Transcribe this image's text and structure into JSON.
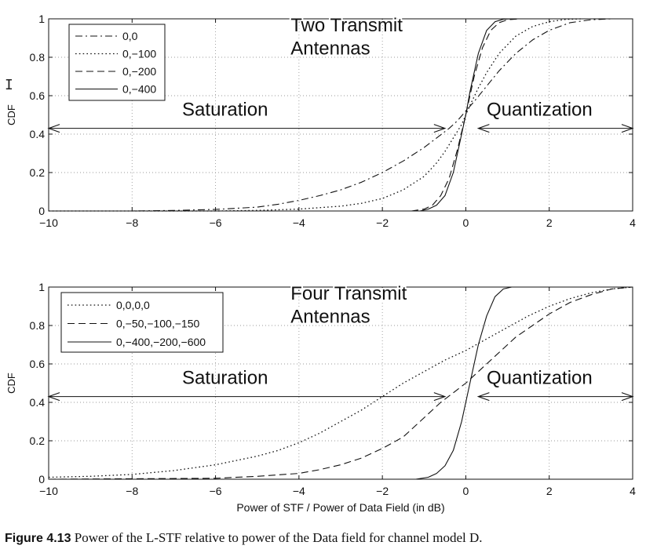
{
  "chart_data": [
    {
      "type": "line",
      "title": "",
      "xlabel": "",
      "ylabel": "CDF",
      "xlim": [
        -10,
        4
      ],
      "ylim": [
        0,
        1
      ],
      "xticks": [
        -10,
        -8,
        -6,
        -4,
        -2,
        0,
        2,
        4
      ],
      "xtick_labels": [
        "−10",
        "−8",
        "−6",
        "−4",
        "−2",
        "0",
        "2",
        "4"
      ],
      "yticks": [
        0,
        0.2,
        0.4,
        0.6,
        0.8,
        1
      ],
      "ytick_labels": [
        "0",
        "0.2",
        "0.4",
        "0.6",
        "0.8",
        "1"
      ],
      "grid": true,
      "legend_position": "top-left",
      "annotations": [
        {
          "text": "Two Transmit",
          "x": -4.2,
          "y": 0.935
        },
        {
          "text": "Antennas",
          "x": -4.2,
          "y": 0.815
        },
        {
          "text": "Saturation",
          "x": -6.8,
          "y": 0.495
        },
        {
          "text": "Quantization",
          "x": 0.5,
          "y": 0.495
        }
      ],
      "arrows": [
        {
          "from": [
            -10,
            0.43
          ],
          "to": [
            -0.5,
            0.43
          ]
        },
        {
          "from": [
            0.3,
            0.43
          ],
          "to": [
            4,
            0.43
          ]
        }
      ],
      "series": [
        {
          "name": "0,0",
          "style": "dashdot",
          "x": [
            -10,
            -8,
            -7,
            -6,
            -5,
            -4.5,
            -4,
            -3.5,
            -3,
            -2.5,
            -2,
            -1.5,
            -1,
            -0.7,
            -0.4,
            -0.2,
            0,
            0.2,
            0.5,
            0.8,
            1.2,
            1.6,
            2,
            2.5,
            3,
            3.5
          ],
          "y": [
            0,
            0,
            0.003,
            0.008,
            0.02,
            0.035,
            0.055,
            0.08,
            0.11,
            0.15,
            0.2,
            0.26,
            0.33,
            0.38,
            0.43,
            0.47,
            0.52,
            0.57,
            0.65,
            0.73,
            0.82,
            0.89,
            0.94,
            0.98,
            0.995,
            1
          ]
        },
        {
          "name": "0,−100",
          "style": "dotted",
          "x": [
            -10,
            -6,
            -5,
            -4,
            -3,
            -2.5,
            -2,
            -1.5,
            -1,
            -0.7,
            -0.5,
            -0.3,
            -0.1,
            0,
            0.1,
            0.3,
            0.5,
            0.8,
            1.2,
            1.6,
            2,
            2.4,
            2.8
          ],
          "y": [
            0,
            0,
            0.003,
            0.01,
            0.025,
            0.04,
            0.065,
            0.11,
            0.18,
            0.25,
            0.31,
            0.38,
            0.45,
            0.5,
            0.55,
            0.64,
            0.72,
            0.82,
            0.91,
            0.96,
            0.985,
            0.997,
            1
          ]
        },
        {
          "name": "0,−200",
          "style": "dashed",
          "x": [
            -10,
            -1.3,
            -1,
            -0.8,
            -0.6,
            -0.4,
            -0.2,
            0,
            0.2,
            0.4,
            0.6,
            0.8,
            1,
            1.3
          ],
          "y": [
            0,
            0,
            0.01,
            0.03,
            0.08,
            0.17,
            0.32,
            0.5,
            0.7,
            0.85,
            0.94,
            0.98,
            0.995,
            1
          ]
        },
        {
          "name": "0,−400",
          "style": "solid",
          "x": [
            -10,
            -1.1,
            -0.9,
            -0.7,
            -0.5,
            -0.3,
            -0.1,
            0,
            0.1,
            0.3,
            0.5,
            0.7,
            0.9,
            1.1
          ],
          "y": [
            0,
            0,
            0.01,
            0.03,
            0.08,
            0.2,
            0.4,
            0.5,
            0.62,
            0.82,
            0.94,
            0.985,
            0.998,
            1
          ]
        }
      ]
    },
    {
      "type": "line",
      "title": "",
      "xlabel": "Power of STF / Power of Data Field (in dB)",
      "ylabel": "CDF",
      "xlim": [
        -10,
        4
      ],
      "ylim": [
        0,
        1
      ],
      "xticks": [
        -10,
        -8,
        -6,
        -4,
        -2,
        0,
        2,
        4
      ],
      "xtick_labels": [
        "−10",
        "−8",
        "−6",
        "−4",
        "−2",
        "0",
        "2",
        "4"
      ],
      "yticks": [
        0,
        0.2,
        0.4,
        0.6,
        0.8,
        1
      ],
      "ytick_labels": [
        "0",
        "0.2",
        "0.4",
        "0.6",
        "0.8",
        "1"
      ],
      "grid": true,
      "legend_position": "top-left",
      "annotations": [
        {
          "text": "Four Transmit",
          "x": -4.2,
          "y": 0.935
        },
        {
          "text": "Antennas",
          "x": -4.2,
          "y": 0.815
        },
        {
          "text": "Saturation",
          "x": -6.8,
          "y": 0.495
        },
        {
          "text": "Quantization",
          "x": 0.5,
          "y": 0.495
        }
      ],
      "arrows": [
        {
          "from": [
            -10,
            0.43
          ],
          "to": [
            -0.5,
            0.43
          ]
        },
        {
          "from": [
            0.3,
            0.43
          ],
          "to": [
            4,
            0.43
          ]
        }
      ],
      "series": [
        {
          "name": "0,0,0,0",
          "style": "dotted",
          "x": [
            -10,
            -9,
            -8,
            -7,
            -6,
            -5,
            -4.5,
            -4,
            -3.5,
            -3,
            -2.5,
            -2,
            -1.5,
            -1,
            -0.5,
            0,
            0.5,
            1,
            1.5,
            2,
            2.5,
            3,
            3.5,
            4
          ],
          "y": [
            0.01,
            0.015,
            0.025,
            0.045,
            0.075,
            0.12,
            0.15,
            0.19,
            0.24,
            0.3,
            0.36,
            0.43,
            0.5,
            0.56,
            0.62,
            0.67,
            0.73,
            0.79,
            0.85,
            0.9,
            0.94,
            0.97,
            0.99,
            1
          ]
        },
        {
          "name": "0,−50,−100,−150",
          "style": "dashed",
          "x": [
            -10,
            -6,
            -5,
            -4,
            -3.5,
            -3,
            -2.5,
            -2,
            -1.5,
            -1.2,
            -0.9,
            -0.6,
            -0.3,
            0,
            0.3,
            0.6,
            0.9,
            1.2,
            1.6,
            2,
            2.5,
            3,
            3.5,
            4
          ],
          "y": [
            0,
            0.005,
            0.015,
            0.03,
            0.05,
            0.075,
            0.11,
            0.16,
            0.22,
            0.28,
            0.34,
            0.4,
            0.45,
            0.5,
            0.56,
            0.62,
            0.68,
            0.74,
            0.8,
            0.86,
            0.92,
            0.96,
            0.99,
            1
          ]
        },
        {
          "name": "0,−400,−200,−600",
          "style": "solid",
          "x": [
            -10,
            -1.2,
            -0.9,
            -0.7,
            -0.5,
            -0.3,
            -0.1,
            0,
            0.1,
            0.3,
            0.5,
            0.7,
            0.9,
            1.1
          ],
          "y": [
            0,
            0,
            0.01,
            0.03,
            0.07,
            0.15,
            0.3,
            0.4,
            0.5,
            0.7,
            0.85,
            0.95,
            0.99,
            1
          ]
        }
      ]
    }
  ],
  "caption": {
    "label": "Figure 4.13",
    "text": " Power of the L-STF relative to power of the Data field for channel model D."
  }
}
